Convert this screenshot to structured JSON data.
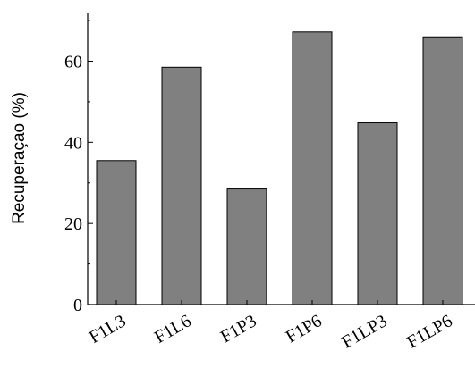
{
  "chart_data": {
    "type": "bar",
    "title": "",
    "xlabel": "",
    "ylabel": "Recuperaçao (%)",
    "categories": [
      "F1L3",
      "F1L6",
      "F1P3",
      "F1P6",
      "F1LP3",
      "F1LP6"
    ],
    "values": [
      35.5,
      58.5,
      28.5,
      67.2,
      44.8,
      66.0
    ],
    "ylim": [
      0,
      72
    ],
    "yticks": [
      0,
      20,
      40,
      60
    ],
    "grid": false,
    "legend": "none",
    "bar_color": "#808080",
    "bar_edge_color": "#000000"
  }
}
